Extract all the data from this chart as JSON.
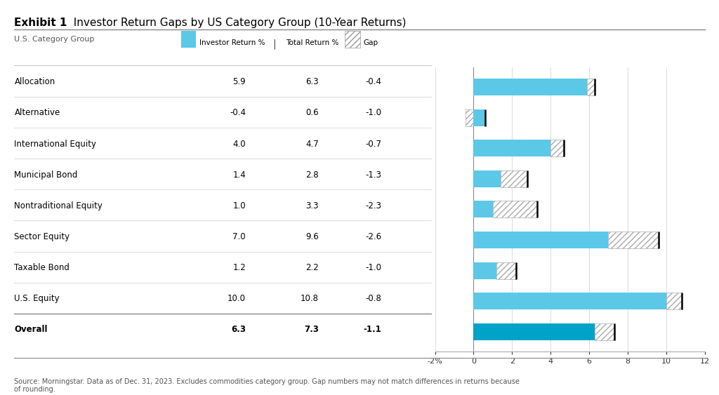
{
  "title_bold": "Exhibit 1",
  "title_rest": "  Investor Return Gaps by US Category Group (10-Year Returns)",
  "categories": [
    "Allocation",
    "Alternative",
    "International Equity",
    "Municipal Bond",
    "Nontraditional Equity",
    "Sector Equity",
    "Taxable Bond",
    "U.S. Equity",
    "Overall"
  ],
  "investor_return": [
    5.9,
    -0.4,
    4.0,
    1.4,
    1.0,
    7.0,
    1.2,
    10.0,
    6.3
  ],
  "total_return": [
    6.3,
    0.6,
    4.7,
    2.8,
    3.3,
    9.6,
    2.2,
    10.8,
    7.3
  ],
  "gap": [
    -0.4,
    -1.0,
    -0.7,
    -1.3,
    -2.3,
    -2.6,
    -1.0,
    -0.8,
    -1.1
  ],
  "investor_color_light": "#5BC8E8",
  "investor_color_dark": "#00A3C7",
  "gap_hatch": "////",
  "xlim": [
    -2,
    12
  ],
  "xticks": [
    -2,
    0,
    2,
    4,
    6,
    8,
    10,
    12
  ],
  "xticklabels": [
    "-2%",
    "0",
    "2",
    "4",
    "6",
    "8",
    "10",
    "12"
  ],
  "bg_color": "#FFFFFF",
  "source_text": "Source: Morningstar. Data as of Dec. 31, 2023. Excludes commodities category group. Gap numbers may not match differences in returns because\nof rounding.",
  "legend_investor": "Investor Return %",
  "legend_total": "Total Return %",
  "legend_gap": "Gap",
  "col_header": "U.S. Category Group"
}
